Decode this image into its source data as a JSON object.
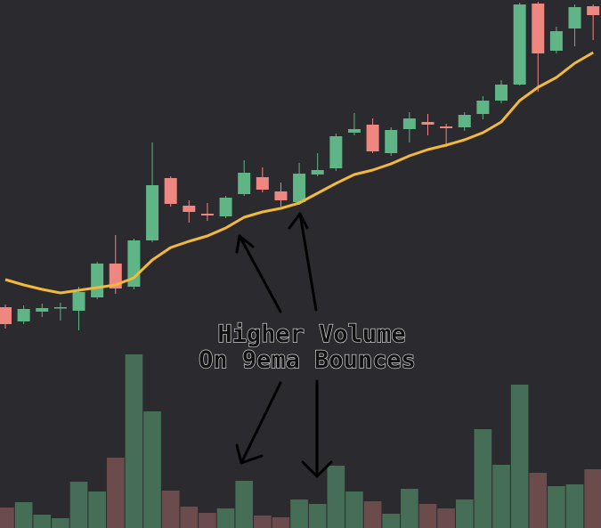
{
  "chart_data": {
    "type": "candlestick",
    "open": [
      248,
      232,
      243,
      247,
      244,
      259,
      297,
      271,
      323,
      393,
      362,
      353,
      350,
      375,
      394,
      378,
      366,
      397,
      404,
      444,
      453,
      421,
      448,
      456,
      451,
      450,
      465,
      480,
      498,
      589,
      536,
      561,
      586
    ],
    "high": [
      251,
      250,
      252,
      253,
      271,
      299,
      329,
      325,
      433,
      395,
      368,
      365,
      373,
      413,
      405,
      388,
      410,
      421,
      443,
      466,
      460,
      450,
      467,
      465,
      454,
      467,
      485,
      503,
      590,
      591,
      563,
      588,
      588
    ],
    "low": [
      224,
      229,
      237,
      233,
      222,
      257,
      263,
      268,
      321,
      361,
      343,
      345,
      348,
      373,
      377,
      361,
      363,
      395,
      401,
      441,
      421,
      418,
      433,
      441,
      428,
      446,
      459,
      477,
      497,
      490,
      533,
      541,
      548
    ],
    "close": [
      229,
      246,
      247,
      248,
      265,
      297,
      269,
      323,
      385,
      364,
      355,
      351,
      371,
      399,
      380,
      368,
      398,
      402,
      440,
      448,
      423,
      447,
      460,
      453,
      449,
      464,
      480,
      498,
      588,
      533,
      558,
      585,
      576
    ],
    "ema": {
      "color": "#f2b93b",
      "values": [
        279,
        273,
        268,
        264,
        267,
        270,
        273,
        281,
        301,
        315,
        322,
        328,
        337,
        349,
        355,
        359,
        365,
        376,
        387,
        397,
        402,
        409,
        418,
        425,
        430,
        436,
        444,
        456,
        480,
        495,
        506,
        522,
        534
      ]
    },
    "volume": [
      23,
      29,
      15,
      11,
      52,
      41,
      79,
      195,
      131,
      42,
      24,
      17,
      22,
      53,
      14,
      12,
      32,
      27,
      70,
      41,
      30,
      16,
      44,
      27,
      22,
      32,
      111,
      71,
      161,
      62,
      47,
      49,
      66
    ],
    "up_color": "#5fb585",
    "down_color": "#ef8680",
    "volume_up_color": "#466e56",
    "volume_down_color": "#6b4b4b",
    "ylim": [
      0,
      593
    ],
    "volume_ylim": [
      0,
      593
    ],
    "annotations": [
      "Higher Volume",
      "On 9ema Bounces"
    ]
  }
}
